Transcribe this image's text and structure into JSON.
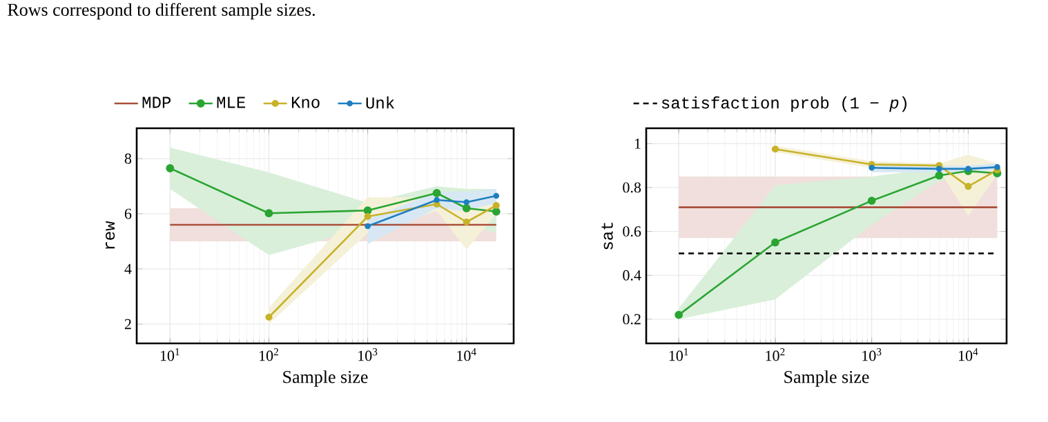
{
  "chart_data": [
    {
      "type": "line",
      "annotations": [
        "Rows correspond to different sample sizes."
      ],
      "xlabel": "Sample size",
      "ylabel": "rew",
      "log": "x",
      "grid": true,
      "legend": "top",
      "marker": "circle",
      "x": [
        10,
        100,
        1000,
        5000,
        10000,
        20000
      ],
      "xlim": [
        4.6,
        30000
      ],
      "ylim": [
        1.3,
        9.1
      ],
      "xticks": [
        {
          "value": 10,
          "label": "10$^{1}$"
        },
        {
          "value": 100,
          "label": "10$^{2}$"
        },
        {
          "value": 1000,
          "label": "10$^{3}$"
        },
        {
          "value": 10000,
          "label": "10$^{4}$"
        }
      ],
      "yticks": [
        2,
        4,
        6,
        8
      ],
      "series": [
        {
          "name": "MDP",
          "color": "#a94f3b",
          "marker": "none",
          "values": [
            5.6,
            5.6,
            5.6,
            5.6,
            5.6,
            5.6
          ],
          "lower": [
            5.0,
            5.0,
            5.0,
            5.0,
            5.0,
            5.0
          ],
          "upper": [
            6.2,
            6.2,
            6.2,
            6.2,
            6.2,
            6.2
          ]
        },
        {
          "name": "MLE",
          "color": "#2aa532",
          "values": [
            7.65,
            6.02,
            6.12,
            6.75,
            6.2,
            6.08
          ],
          "lower": [
            6.9,
            4.5,
            5.5,
            6.3,
            5.6,
            5.3
          ],
          "upper": [
            8.4,
            7.5,
            6.4,
            7.0,
            6.9,
            6.9
          ]
        },
        {
          "name": "Kno",
          "color": "#c8b22a",
          "values": [
            null,
            2.25,
            5.9,
            6.35,
            5.7,
            6.3
          ],
          "lower": [
            null,
            2.0,
            5.3,
            6.1,
            4.7,
            6.0
          ],
          "upper": [
            null,
            2.6,
            6.6,
            6.6,
            6.4,
            6.6
          ]
        },
        {
          "name": "Unk",
          "color": "#1f7fc0",
          "values": [
            null,
            null,
            5.55,
            6.5,
            6.42,
            6.65
          ],
          "lower": [
            null,
            null,
            4.9,
            6.2,
            6.1,
            6.4
          ],
          "upper": [
            null,
            null,
            5.8,
            6.8,
            6.8,
            6.9
          ]
        }
      ]
    },
    {
      "type": "line",
      "xlabel": "Sample size",
      "ylabel": "sat",
      "log": "x",
      "grid": true,
      "legend": "top",
      "marker": "circle",
      "x": [
        10,
        100,
        1000,
        5000,
        10000,
        20000
      ],
      "xlim": [
        4.6,
        25000
      ],
      "ylim": [
        0.09,
        1.07
      ],
      "xticks": [
        {
          "value": 10,
          "label": "10$^{1}$"
        },
        {
          "value": 100,
          "label": "10$^{2}$"
        },
        {
          "value": 1000,
          "label": "10$^{3}$"
        },
        {
          "value": 10000,
          "label": "10$^{4}$"
        }
      ],
      "yticks": [
        0.2,
        0.4,
        0.6,
        0.8,
        1
      ],
      "ref_lines": [
        {
          "axis": "y",
          "value": 0.5,
          "label": "satisfaction prob (1 − *p*)",
          "line_style": "dashed",
          "color": "#000000"
        }
      ],
      "series": [
        {
          "color": "#a94f3b",
          "marker": "none",
          "values": [
            0.71,
            0.71,
            0.71,
            0.71,
            0.71,
            0.71
          ],
          "lower": [
            0.57,
            0.57,
            0.57,
            0.57,
            0.57,
            0.57
          ],
          "upper": [
            0.85,
            0.85,
            0.85,
            0.85,
            0.85,
            0.85
          ]
        },
        {
          "color": "#2aa532",
          "values": [
            0.22,
            0.55,
            0.74,
            0.855,
            0.875,
            0.865
          ],
          "lower": [
            0.2,
            0.29,
            0.63,
            0.83,
            0.85,
            0.85
          ],
          "upper": [
            0.25,
            0.81,
            0.85,
            0.89,
            0.9,
            0.89
          ]
        },
        {
          "color": "#c8b22a",
          "values": [
            null,
            0.975,
            0.905,
            0.9,
            0.805,
            0.88
          ],
          "lower": [
            null,
            0.96,
            0.89,
            0.88,
            0.67,
            0.86
          ],
          "upper": [
            null,
            0.99,
            0.92,
            0.91,
            0.95,
            0.91
          ]
        },
        {
          "color": "#1f7fc0",
          "values": [
            null,
            null,
            0.89,
            0.885,
            0.885,
            0.893
          ],
          "lower": [
            null,
            null,
            0.87,
            0.87,
            0.87,
            0.88
          ],
          "upper": [
            null,
            null,
            0.9,
            0.9,
            0.9,
            0.91
          ]
        }
      ]
    }
  ]
}
